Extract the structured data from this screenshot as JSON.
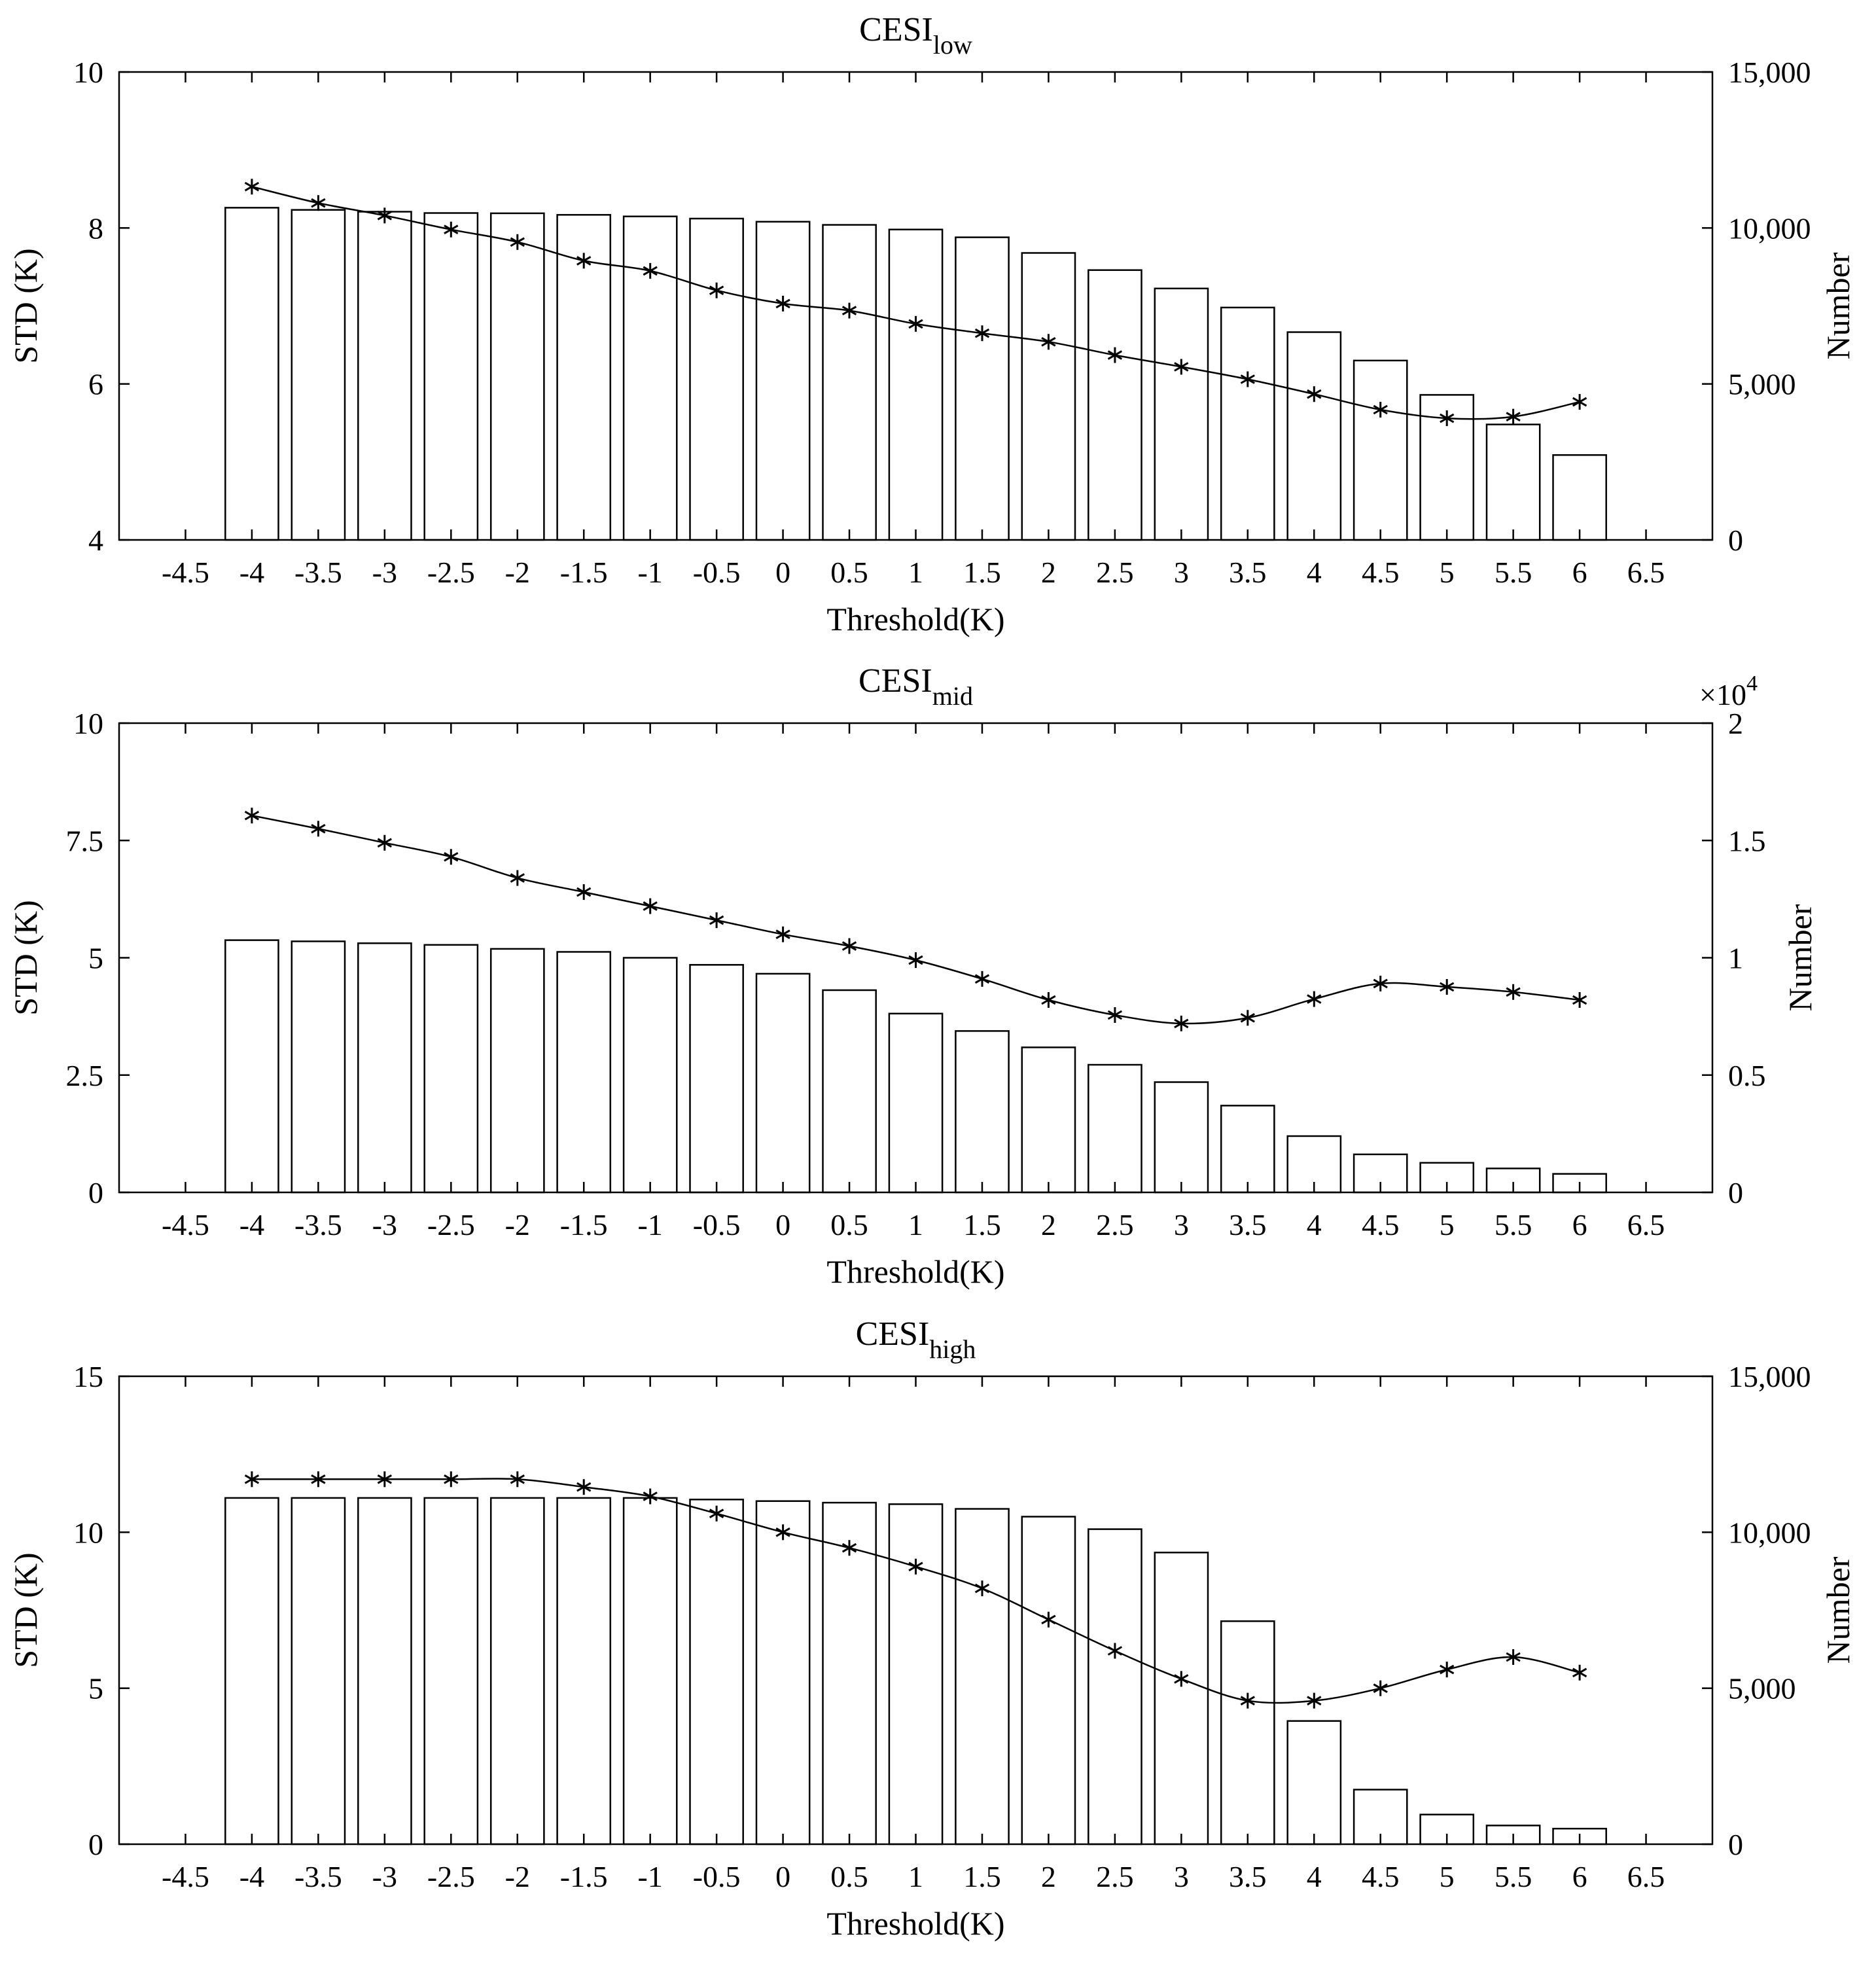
{
  "chart_data": [
    {
      "type": "bar+line",
      "title": "CESI",
      "title_subscript": "low",
      "xlabel": "Threshold(K)",
      "ylabel_left": "STD (K)",
      "ylabel_right": "Number",
      "x_ticks": [
        "-4.5",
        "-4",
        "-3.5",
        "-3",
        "-2.5",
        "-2",
        "-1.5",
        "-1",
        "-0.5",
        "0",
        "0.5",
        "1",
        "1.5",
        "2",
        "2.5",
        "3",
        "3.5",
        "4",
        "4.5",
        "5",
        "5.5",
        "6",
        "6.5"
      ],
      "xlim": [
        -5.0,
        7.0
      ],
      "ylim_left": [
        4,
        10
      ],
      "yticks_left": [
        4,
        6,
        8,
        10
      ],
      "ytick_labels_left": [
        "4",
        "6",
        "8",
        "10"
      ],
      "ylim_right": [
        0,
        15000
      ],
      "yticks_right": [
        0,
        5000,
        10000,
        15000
      ],
      "ytick_labels_right": [
        "0",
        "5,000",
        "10,000",
        "15,000"
      ],
      "right_axis_multiplier": "",
      "x": [
        -4,
        -3.5,
        -3,
        -2.5,
        -2,
        -1.5,
        -1,
        -0.5,
        0,
        0.5,
        1,
        1.5,
        2,
        2.5,
        3,
        3.5,
        4,
        4.5,
        5,
        5.5,
        6
      ],
      "series": [
        {
          "name": "Number",
          "kind": "bar",
          "axis": "right",
          "values": [
            10650,
            10580,
            10520,
            10480,
            10470,
            10420,
            10370,
            10300,
            10200,
            10100,
            9950,
            9700,
            9200,
            8650,
            8060,
            7450,
            6660,
            5750,
            4650,
            3700,
            2720
          ]
        },
        {
          "name": "STD",
          "kind": "line",
          "marker": "asterisk",
          "axis": "left",
          "values": [
            8.53,
            8.32,
            8.16,
            7.98,
            7.82,
            7.58,
            7.45,
            7.2,
            7.03,
            6.94,
            6.77,
            6.65,
            6.54,
            6.37,
            6.22,
            6.06,
            5.87,
            5.67,
            5.56,
            5.58,
            5.77
          ]
        }
      ]
    },
    {
      "type": "bar+line",
      "title": "CESI",
      "title_subscript": "mid",
      "xlabel": "Threshold(K)",
      "ylabel_left": "STD (K)",
      "ylabel_right": "Number",
      "x_ticks": [
        "-4.5",
        "-4",
        "-3.5",
        "-3",
        "-2.5",
        "-2",
        "-1.5",
        "-1",
        "-0.5",
        "0",
        "0.5",
        "1",
        "1.5",
        "2",
        "2.5",
        "3",
        "3.5",
        "4",
        "4.5",
        "5",
        "5.5",
        "6",
        "6.5"
      ],
      "xlim": [
        -5.0,
        7.0
      ],
      "ylim_left": [
        0,
        10
      ],
      "yticks_left": [
        0,
        2.5,
        5,
        7.5,
        10
      ],
      "ytick_labels_left": [
        "0",
        "2.5",
        "5",
        "7.5",
        "10"
      ],
      "ylim_right": [
        0,
        20000
      ],
      "yticks_right": [
        0,
        5000,
        10000,
        15000,
        20000
      ],
      "ytick_labels_right": [
        "0",
        "0.5",
        "1",
        "1.5",
        "2"
      ],
      "right_axis_multiplier": "×10",
      "right_axis_multiplier_exp": "4",
      "x": [
        -4,
        -3.5,
        -3,
        -2.5,
        -2,
        -1.5,
        -1,
        -0.5,
        0,
        0.5,
        1,
        1.5,
        2,
        2.5,
        3,
        3.5,
        4,
        4.5,
        5,
        5.5,
        6
      ],
      "series": [
        {
          "name": "Number",
          "kind": "bar",
          "axis": "right",
          "values": [
            10750,
            10700,
            10620,
            10550,
            10380,
            10250,
            10000,
            9700,
            9320,
            8620,
            7620,
            6880,
            6180,
            5440,
            4700,
            3700,
            2400,
            1620,
            1260,
            1020,
            790
          ]
        },
        {
          "name": "STD",
          "kind": "line",
          "marker": "asterisk",
          "axis": "left",
          "values": [
            8.03,
            7.75,
            7.45,
            7.15,
            6.7,
            6.4,
            6.1,
            5.8,
            5.5,
            5.25,
            4.95,
            4.55,
            4.1,
            3.78,
            3.6,
            3.72,
            4.12,
            4.45,
            4.38,
            4.27,
            4.1
          ]
        }
      ]
    },
    {
      "type": "bar+line",
      "title": "CESI",
      "title_subscript": "high",
      "xlabel": "Threshold(K)",
      "ylabel_left": "STD (K)",
      "ylabel_right": "Number",
      "x_ticks": [
        "-4.5",
        "-4",
        "-3.5",
        "-3",
        "-2.5",
        "-2",
        "-1.5",
        "-1",
        "-0.5",
        "0",
        "0.5",
        "1",
        "1.5",
        "2",
        "2.5",
        "3",
        "3.5",
        "4",
        "4.5",
        "5",
        "5.5",
        "6",
        "6.5"
      ],
      "xlim": [
        -5.0,
        7.0
      ],
      "ylim_left": [
        0,
        15
      ],
      "yticks_left": [
        0,
        5,
        10,
        15
      ],
      "ytick_labels_left": [
        "0",
        "5",
        "10",
        "15"
      ],
      "ylim_right": [
        0,
        15000
      ],
      "yticks_right": [
        0,
        5000,
        10000,
        15000
      ],
      "ytick_labels_right": [
        "0",
        "5,000",
        "10,000",
        "15,000"
      ],
      "right_axis_multiplier": "",
      "x": [
        -4,
        -3.5,
        -3,
        -2.5,
        -2,
        -1.5,
        -1,
        -0.5,
        0,
        0.5,
        1,
        1.5,
        2,
        2.5,
        3,
        3.5,
        4,
        4.5,
        5,
        5.5,
        6
      ],
      "series": [
        {
          "name": "Number",
          "kind": "bar",
          "axis": "right",
          "values": [
            11100,
            11100,
            11100,
            11100,
            11100,
            11100,
            11100,
            11050,
            11000,
            10950,
            10900,
            10750,
            10500,
            10100,
            9350,
            7150,
            3950,
            1750,
            950,
            600,
            500
          ]
        },
        {
          "name": "STD",
          "kind": "line",
          "marker": "asterisk",
          "axis": "left",
          "values": [
            11.7,
            11.7,
            11.7,
            11.7,
            11.7,
            11.45,
            11.15,
            10.6,
            10.0,
            9.5,
            8.9,
            8.2,
            7.2,
            6.2,
            5.3,
            4.6,
            4.6,
            5.0,
            5.6,
            6.0,
            5.5
          ]
        }
      ]
    }
  ]
}
